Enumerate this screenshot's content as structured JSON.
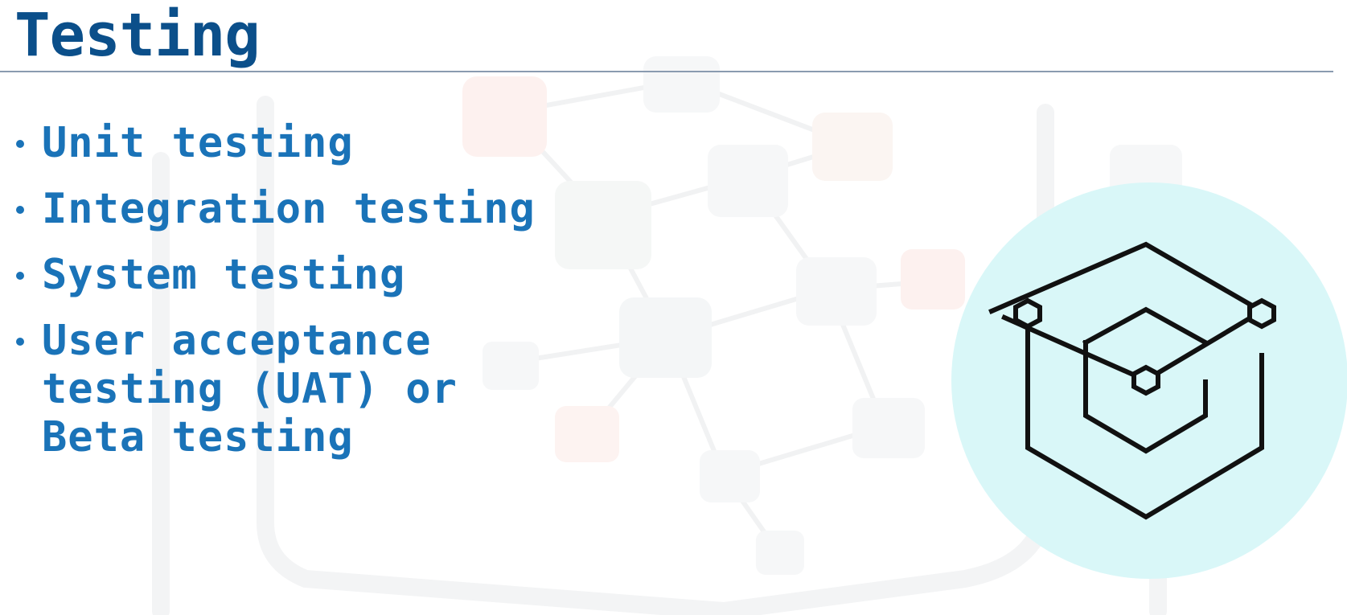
{
  "slide": {
    "title": "Testing",
    "bullets": [
      "Unit testing",
      "Integration testing",
      "System testing",
      "User acceptance testing (UAT) or Beta testing"
    ]
  },
  "icons": {
    "emblem": "nested-cube-icon"
  },
  "colors": {
    "title": "#0b4f8a",
    "bullet_text": "#1a73b8",
    "rule": "#8a9bb0",
    "emblem_circle": "#d9f7f8",
    "emblem_stroke": "#111111"
  }
}
